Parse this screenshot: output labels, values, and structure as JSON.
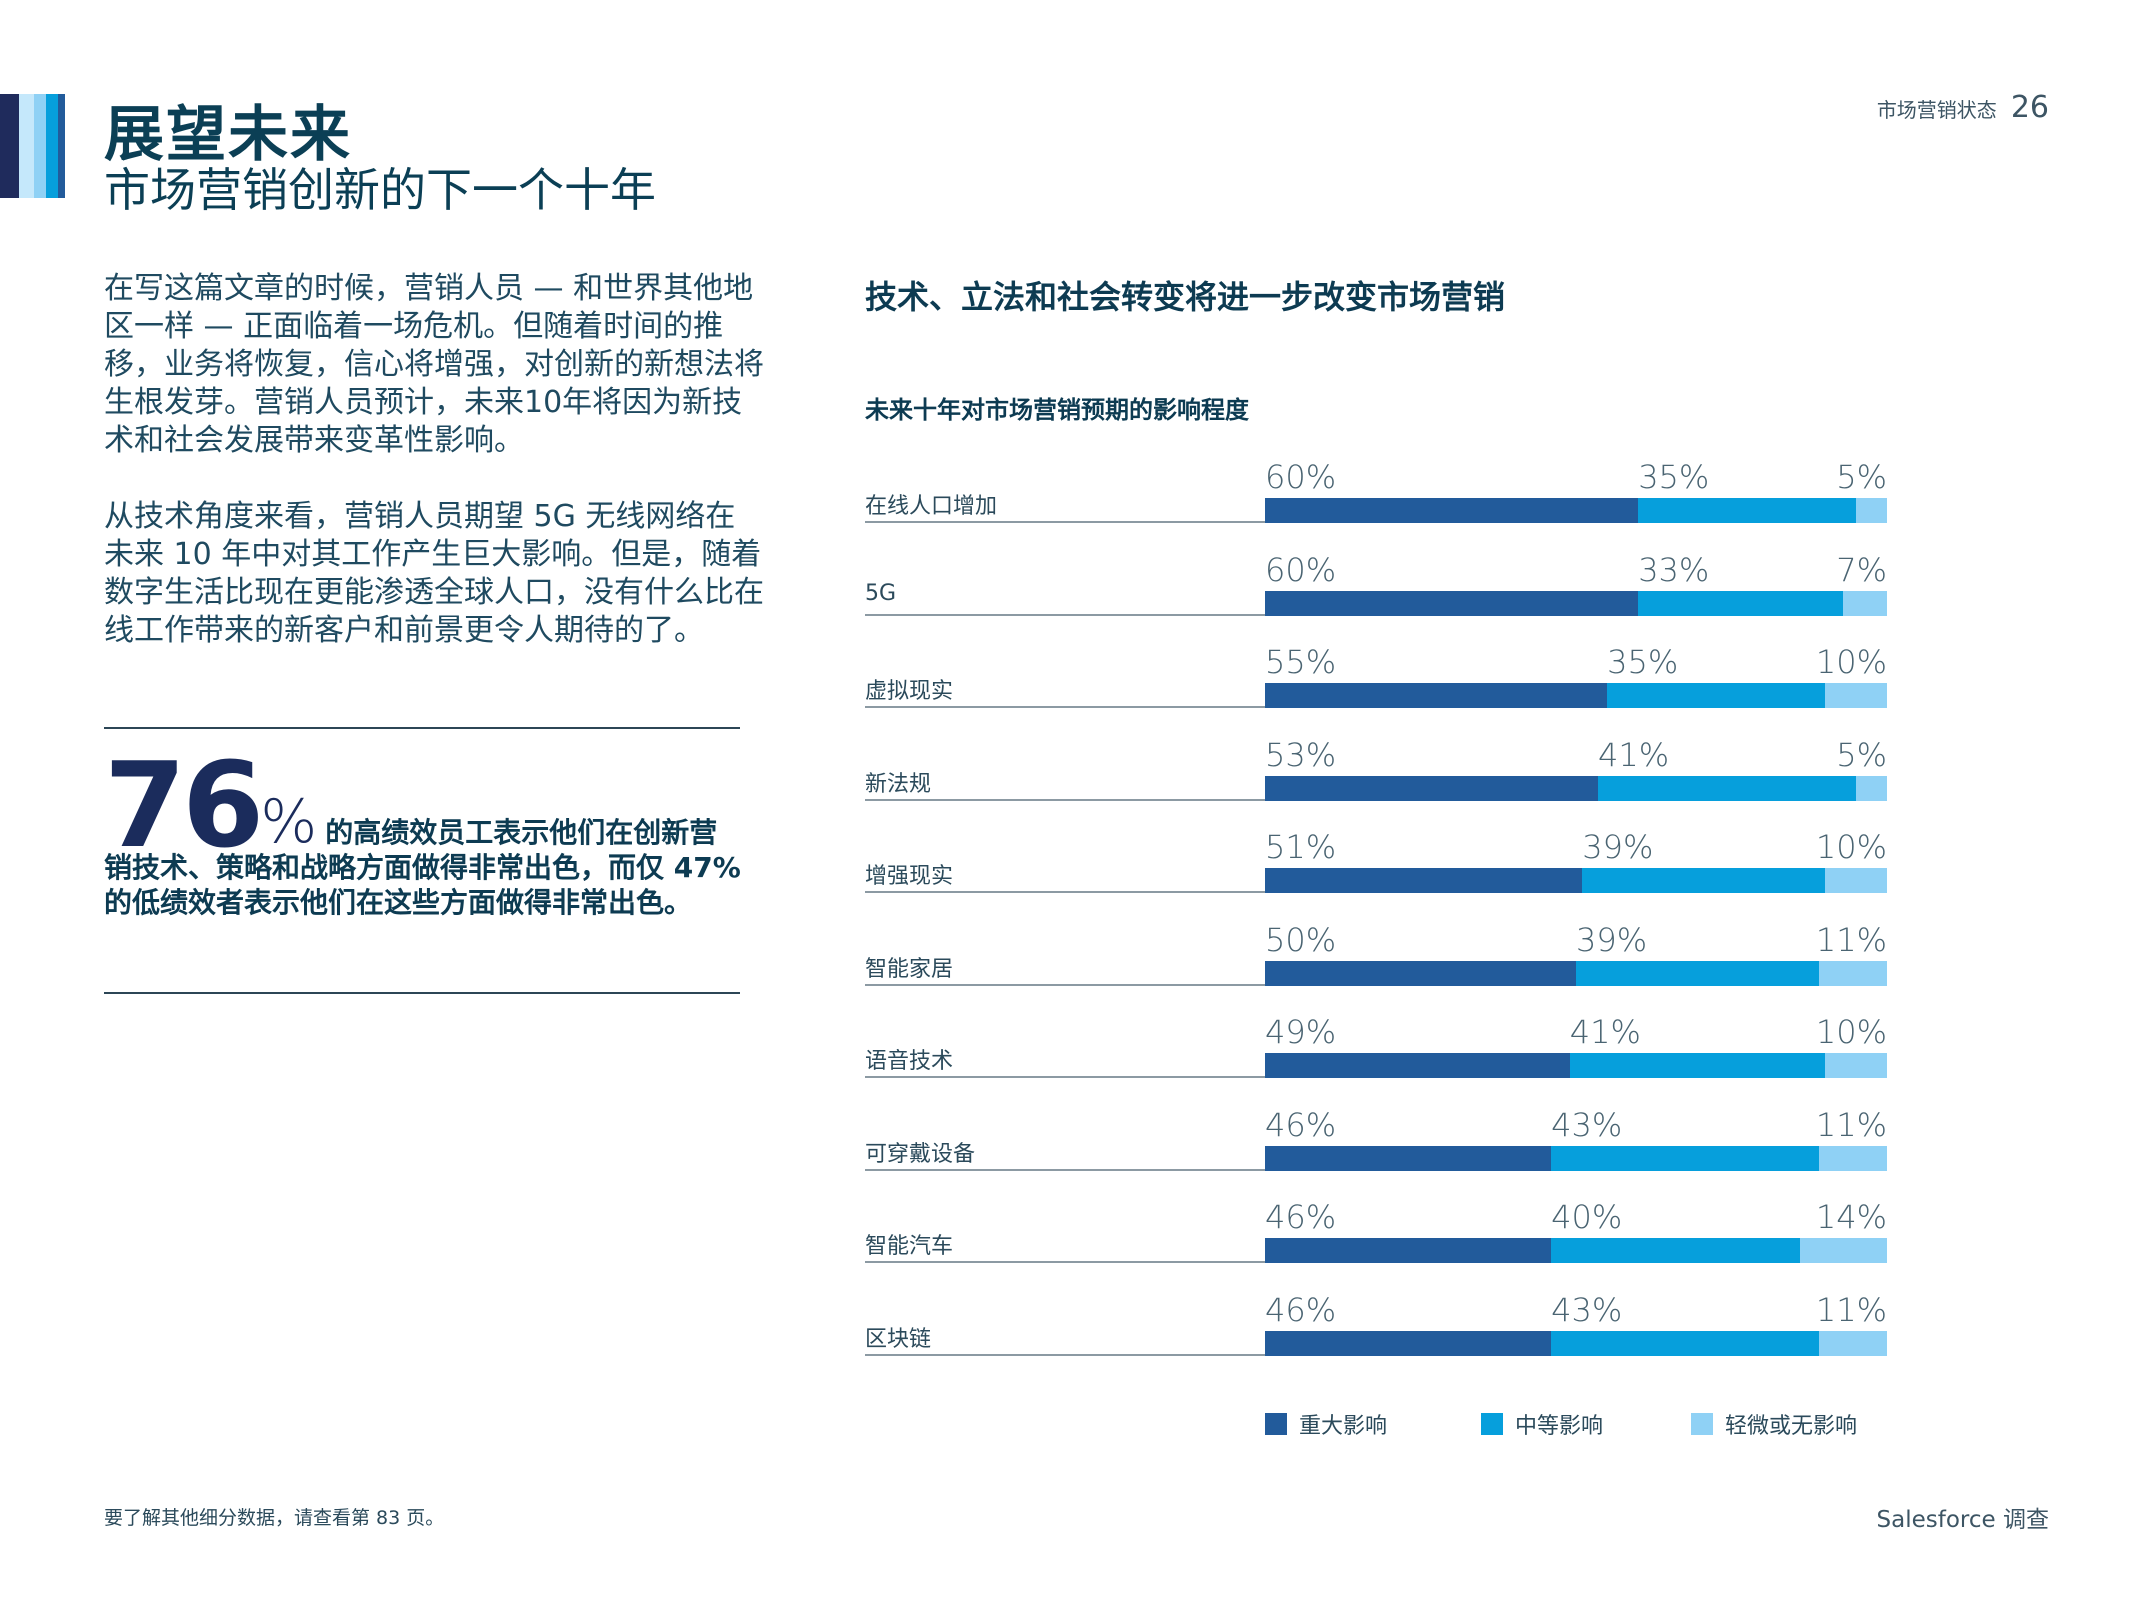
{
  "header": {
    "section": "市场营销状态",
    "page": "26"
  },
  "title": "展望未来",
  "subtitle": "市场营销创新的下一个十年",
  "paragraphs": [
    "在写这篇文章的时候，营销人员 — 和世界其他地区一样 — 正面临着一场危机。但随着时间的推移，业务将恢复，信心将增强，对创新的新想法将生根发芽。营销人员预计，未来10年将因为新技术和社会发展带来变革性影响。",
    "从技术角度来看，营销人员期望 5G 无线网络在未来 10 年中对其工作产生巨大影响。但是，随着数字生活比现在更能渗透全球人口，没有什么比在线工作带来的新客户和前景更令人期待的了。"
  ],
  "stat": {
    "number": "76",
    "percent": "%",
    "text": "的高绩效员工表示他们在创新营销技术、策略和战略方面做得非常出色，而仅 47% 的低绩效者表示他们在这些方面做得非常出色。"
  },
  "chart_title": "技术、立法和社会转变将进一步改变市场营销",
  "chart_data": {
    "type": "bar",
    "stacked": true,
    "orientation": "horizontal",
    "title": "未来十年对市场营销预期的影响程度",
    "categories": [
      "在线人口增加",
      "5G",
      "虚拟现实",
      "新法规",
      "增强现实",
      "智能家居",
      "语音技术",
      "可穿戴设备",
      "智能汽车",
      "区块链"
    ],
    "series": [
      {
        "name": "重大影响",
        "color": "#225b9b",
        "values": [
          60,
          60,
          55,
          53,
          51,
          50,
          49,
          46,
          46,
          46
        ]
      },
      {
        "name": "中等影响",
        "color": "#069fdc",
        "values": [
          35,
          33,
          35,
          41,
          39,
          39,
          41,
          43,
          40,
          43
        ]
      },
      {
        "name": "轻微或无影响",
        "color": "#8fd1f5",
        "values": [
          5,
          7,
          10,
          5,
          10,
          11,
          10,
          11,
          14,
          11
        ]
      }
    ],
    "legend": "bottom",
    "xlim": [
      0,
      100
    ]
  },
  "footer": {
    "note": "要了解其他细分数据，请查看第 83 页。",
    "source": "Salesforce 调查"
  }
}
